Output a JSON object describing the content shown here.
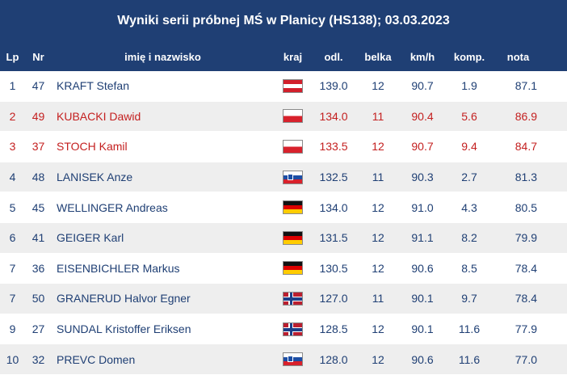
{
  "title": "Wyniki serii próbnej MŚ w Planicy (HS138); 03.03.2023",
  "columns": {
    "lp": "Lp",
    "nr": "Nr",
    "name": "imię i nazwisko",
    "kraj": "kraj",
    "odl": "odl.",
    "belka": "belka",
    "kmh": "km/h",
    "komp": "komp.",
    "nota": "nota"
  },
  "rows": [
    {
      "lp": "1",
      "nr": "47",
      "name": "KRAFT Stefan",
      "flag": "at",
      "odl": "139.0",
      "belka": "12",
      "kmh": "90.7",
      "komp": "1.9",
      "nota": "87.1",
      "highlight": false
    },
    {
      "lp": "2",
      "nr": "49",
      "name": "KUBACKI Dawid",
      "flag": "pl",
      "odl": "134.0",
      "belka": "11",
      "kmh": "90.4",
      "komp": "5.6",
      "nota": "86.9",
      "highlight": true
    },
    {
      "lp": "3",
      "nr": "37",
      "name": "STOCH Kamil",
      "flag": "pl",
      "odl": "133.5",
      "belka": "12",
      "kmh": "90.7",
      "komp": "9.4",
      "nota": "84.7",
      "highlight": true
    },
    {
      "lp": "4",
      "nr": "48",
      "name": "LANISEK Anze",
      "flag": "si",
      "odl": "132.5",
      "belka": "11",
      "kmh": "90.3",
      "komp": "2.7",
      "nota": "81.3",
      "highlight": false
    },
    {
      "lp": "5",
      "nr": "45",
      "name": "WELLINGER Andreas",
      "flag": "de",
      "odl": "134.0",
      "belka": "12",
      "kmh": "91.0",
      "komp": "4.3",
      "nota": "80.5",
      "highlight": false
    },
    {
      "lp": "6",
      "nr": "41",
      "name": "GEIGER Karl",
      "flag": "de",
      "odl": "131.5",
      "belka": "12",
      "kmh": "91.1",
      "komp": "8.2",
      "nota": "79.9",
      "highlight": false
    },
    {
      "lp": "7",
      "nr": "36",
      "name": "EISENBICHLER Markus",
      "flag": "de",
      "odl": "130.5",
      "belka": "12",
      "kmh": "90.6",
      "komp": "8.5",
      "nota": "78.4",
      "highlight": false
    },
    {
      "lp": "7",
      "nr": "50",
      "name": "GRANERUD Halvor Egner",
      "flag": "no",
      "odl": "127.0",
      "belka": "11",
      "kmh": "90.1",
      "komp": "9.7",
      "nota": "78.4",
      "highlight": false
    },
    {
      "lp": "9",
      "nr": "27",
      "name": "SUNDAL Kristoffer Eriksen",
      "flag": "no",
      "odl": "128.5",
      "belka": "12",
      "kmh": "90.1",
      "komp": "11.6",
      "nota": "77.9",
      "highlight": false
    },
    {
      "lp": "10",
      "nr": "32",
      "name": "PREVC Domen",
      "flag": "si",
      "odl": "128.0",
      "belka": "12",
      "kmh": "90.6",
      "komp": "11.6",
      "nota": "77.0",
      "highlight": false
    }
  ]
}
